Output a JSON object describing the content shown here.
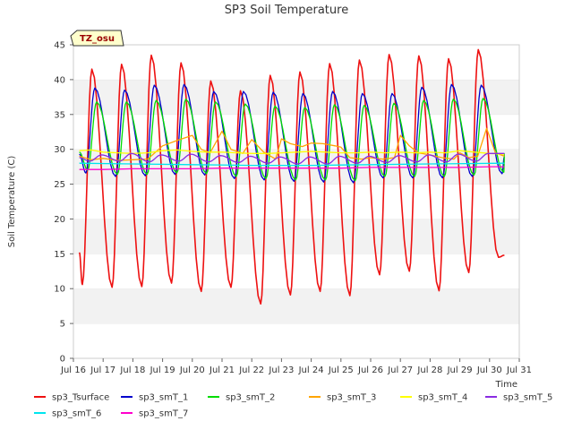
{
  "chart_data": {
    "type": "line",
    "title": "SP3 Soil Temperature",
    "xlabel": "Time",
    "ylabel": "Soil Temperature (C)",
    "site_badge": "TZ_osu",
    "xlim": [
      16,
      31
    ],
    "ylim": [
      0,
      45
    ],
    "x_ticks": [
      16,
      17,
      18,
      19,
      20,
      21,
      22,
      23,
      24,
      25,
      26,
      27,
      28,
      29,
      30,
      31
    ],
    "x_tick_labels": [
      "Jul 16",
      "Jul 17",
      "Jul 18",
      "Jul 19",
      "Jul 20",
      "Jul 21",
      "Jul 22",
      "Jul 23",
      "Jul 24",
      "Jul 25",
      "Jul 26",
      "Jul 27",
      "Jul 28",
      "Jul 29",
      "Jul 30",
      "Jul 31"
    ],
    "y_ticks": [
      0,
      5,
      10,
      15,
      20,
      25,
      30,
      35,
      40,
      45
    ],
    "y_tick_labels": [
      "0",
      "5",
      "10",
      "15",
      "20",
      "25",
      "30",
      "35",
      "40",
      "45"
    ],
    "grid": true,
    "legend_position": "bottom",
    "series": [
      {
        "name": "sp3_Tsurface",
        "color": "#ee1111",
        "peak_day": 0.62,
        "min_day": 0.3,
        "x": [
          16.2,
          17,
          18,
          19,
          20,
          21,
          22,
          23,
          24,
          25,
          26,
          27,
          28,
          29,
          30,
          30.5
        ],
        "mins": [
          10.6,
          10.2,
          10.3,
          10.8,
          9.6,
          10.2,
          7.8,
          9.1,
          9.6,
          9.0,
          12.0,
          12.5,
          9.7,
          12.3,
          14.5,
          14.5
        ],
        "maxs": [
          41.5,
          42.2,
          43.5,
          42.4,
          39.8,
          38.4,
          40.6,
          41.1,
          42.3,
          42.8,
          43.6,
          43.4,
          43.0,
          44.3,
          44.5,
          44.5
        ],
        "start": 15.2,
        "end": 14.8
      },
      {
        "name": "sp3_smT_1",
        "color": "#0000cc",
        "peak_day": 0.72,
        "min_day": 0.42,
        "x": [
          16.2,
          17,
          18,
          19,
          20,
          21,
          22,
          23,
          24,
          25,
          26,
          27,
          28,
          29,
          30,
          30.5
        ],
        "mins": [
          26.6,
          26.1,
          26.2,
          26.4,
          26.3,
          25.8,
          25.6,
          25.4,
          25.3,
          25.2,
          25.9,
          25.9,
          25.9,
          26.1,
          26.5,
          26.5
        ],
        "maxs": [
          38.8,
          38.5,
          39.2,
          39.3,
          38.3,
          38.3,
          38.2,
          38.0,
          38.3,
          38.0,
          38.0,
          38.9,
          39.3,
          39.2,
          39.4,
          39.4
        ],
        "start": 29.3,
        "end": 29.0
      },
      {
        "name": "sp3_smT_2",
        "color": "#00dd00",
        "peak_day": 0.78,
        "min_day": 0.48,
        "x": [
          16.2,
          17,
          18,
          19,
          20,
          21,
          22,
          23,
          24,
          25,
          26,
          27,
          28,
          29,
          30,
          30.5
        ],
        "mins": [
          27.0,
          26.4,
          26.4,
          26.6,
          26.5,
          26.1,
          25.8,
          25.6,
          25.6,
          25.5,
          26.1,
          26.1,
          26.1,
          26.3,
          26.7,
          26.7
        ],
        "maxs": [
          36.8,
          36.8,
          37.0,
          37.2,
          36.8,
          36.5,
          36.2,
          36.0,
          36.4,
          36.3,
          36.6,
          37.0,
          37.2,
          37.3,
          37.4,
          37.4
        ],
        "start": 29.6,
        "end": 29.4
      },
      {
        "name": "sp3_smT_3",
        "color": "#ffa500",
        "x": [
          16.2,
          16.6,
          17.0,
          17.5,
          18.0,
          18.5,
          19.0,
          19.5,
          20.0,
          20.3,
          20.6,
          21.0,
          21.3,
          21.7,
          22.0,
          22.4,
          22.8,
          23.0,
          23.3,
          23.7,
          24.0,
          24.4,
          24.8,
          25.0,
          25.3,
          25.7,
          26.0,
          26.4,
          26.8,
          27.0,
          27.3,
          27.6,
          28.0,
          28.4,
          28.8,
          29.0,
          29.3,
          29.6,
          29.9,
          30.2,
          30.5
        ],
        "y": [
          29.0,
          28.5,
          28.7,
          28.4,
          28.5,
          28.6,
          30.5,
          31.3,
          32.0,
          30.0,
          29.5,
          32.6,
          30.0,
          29.4,
          31.4,
          29.6,
          28.6,
          31.5,
          30.8,
          30.4,
          30.9,
          30.8,
          30.5,
          30.3,
          28.8,
          28.6,
          28.8,
          28.6,
          28.8,
          32.0,
          30.5,
          29.5,
          29.2,
          28.8,
          28.6,
          29.5,
          28.8,
          29.0,
          33.0,
          29.5,
          29.0
        ]
      },
      {
        "name": "sp3_smT_4",
        "color": "#ffff00",
        "x": [
          16.2,
          16.6,
          17.0,
          17.5,
          18.0,
          18.5,
          19.0,
          19.5,
          20.0,
          20.5,
          21.0,
          21.5,
          22.0,
          22.5,
          23.0,
          23.5,
          24.0,
          24.5,
          25.0,
          25.5,
          26.0,
          26.5,
          27.0,
          27.5,
          28.0,
          28.5,
          29.0,
          29.5,
          30.0,
          30.5
        ],
        "y": [
          29.8,
          29.9,
          29.6,
          29.5,
          29.4,
          29.5,
          29.8,
          29.9,
          29.7,
          29.6,
          29.6,
          29.5,
          29.4,
          29.4,
          29.5,
          29.6,
          29.7,
          29.6,
          29.5,
          29.5,
          29.6,
          29.5,
          29.6,
          29.5,
          29.6,
          29.5,
          29.8,
          29.6,
          29.4,
          29.3
        ]
      },
      {
        "name": "sp3_smT_5",
        "color": "#8a2be2",
        "peak_day": 0.95,
        "min_day": 0.55,
        "x": [
          16.2,
          17,
          18,
          19,
          20,
          21,
          22,
          23,
          24,
          25,
          26,
          27,
          28,
          29,
          30,
          30.5
        ],
        "mins": [
          28.3,
          28.3,
          28.2,
          28.3,
          28.2,
          28.1,
          28.0,
          27.9,
          27.9,
          28.0,
          28.1,
          28.2,
          28.2,
          28.3,
          28.4,
          28.4
        ],
        "maxs": [
          29.2,
          29.4,
          29.2,
          29.3,
          29.1,
          29.0,
          28.9,
          28.9,
          29.0,
          29.0,
          29.1,
          29.2,
          29.3,
          29.4,
          29.5,
          29.5
        ],
        "start": 28.8,
        "end": 29.4
      },
      {
        "name": "sp3_smT_6",
        "color": "#00e5ee",
        "x": [
          16.2,
          18,
          20,
          22,
          24,
          26,
          28,
          30.5
        ],
        "y": [
          28.0,
          27.9,
          27.8,
          27.7,
          27.7,
          27.8,
          27.9,
          28.0
        ]
      },
      {
        "name": "sp3_smT_7",
        "color": "#ff00cc",
        "x": [
          16.2,
          17,
          18,
          19,
          20,
          21,
          22,
          23,
          24,
          25,
          26,
          27,
          28,
          29,
          30,
          30.5
        ],
        "y": [
          27.1,
          27.1,
          27.2,
          27.2,
          27.2,
          27.3,
          27.3,
          27.3,
          27.3,
          27.3,
          27.4,
          27.4,
          27.4,
          27.4,
          27.5,
          27.5
        ]
      }
    ]
  }
}
